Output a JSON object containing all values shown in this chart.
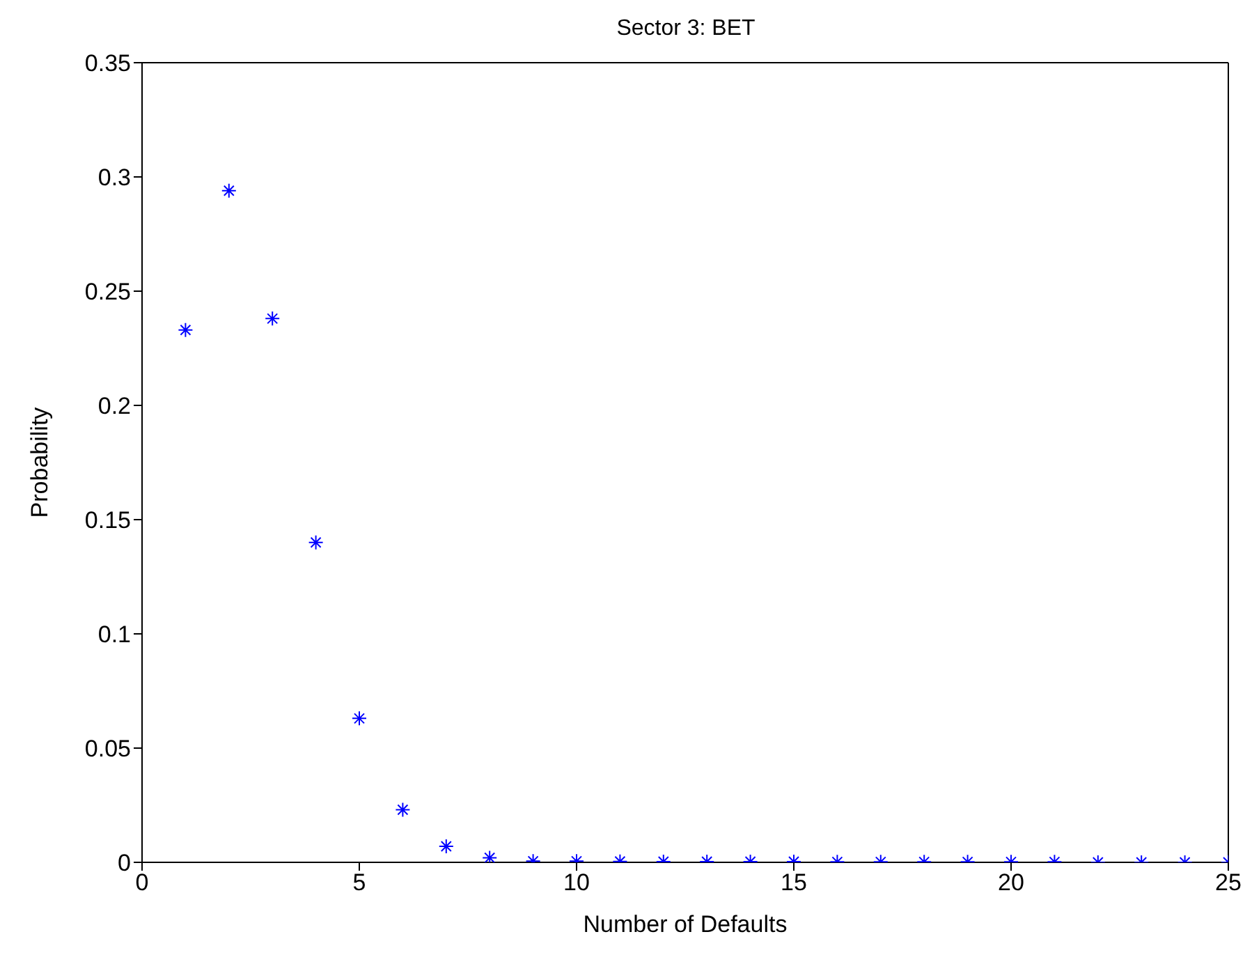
{
  "chart_data": {
    "type": "scatter",
    "title": "Sector 3: BET",
    "xlabel": "Number of Defaults",
    "ylabel": "Probability",
    "x": [
      1,
      2,
      3,
      4,
      5,
      6,
      7,
      8,
      9,
      10,
      11,
      12,
      13,
      14,
      15,
      16,
      17,
      18,
      19,
      20,
      21,
      22,
      23,
      24,
      25
    ],
    "series": [
      {
        "color": "#0000ff",
        "values": [
          0.233,
          0.294,
          0.238,
          0.14,
          0.063,
          0.023,
          0.007,
          0.002,
          0.0005,
          0.0005,
          0.0004,
          0.0003,
          0.0003,
          0.0003,
          0.0003,
          0.0002,
          0.0002,
          0.0002,
          0.0002,
          0.0002,
          0.0002,
          0,
          0,
          0,
          0
        ]
      }
    ],
    "xlim": [
      0,
      25
    ],
    "xticks": [
      0,
      5,
      10,
      15,
      20,
      25
    ],
    "ylim": [
      0,
      0.35
    ],
    "yticks": [
      0,
      0.05,
      0.1,
      0.15,
      0.2,
      0.25,
      0.3,
      0.35
    ],
    "marker": "cross"
  }
}
